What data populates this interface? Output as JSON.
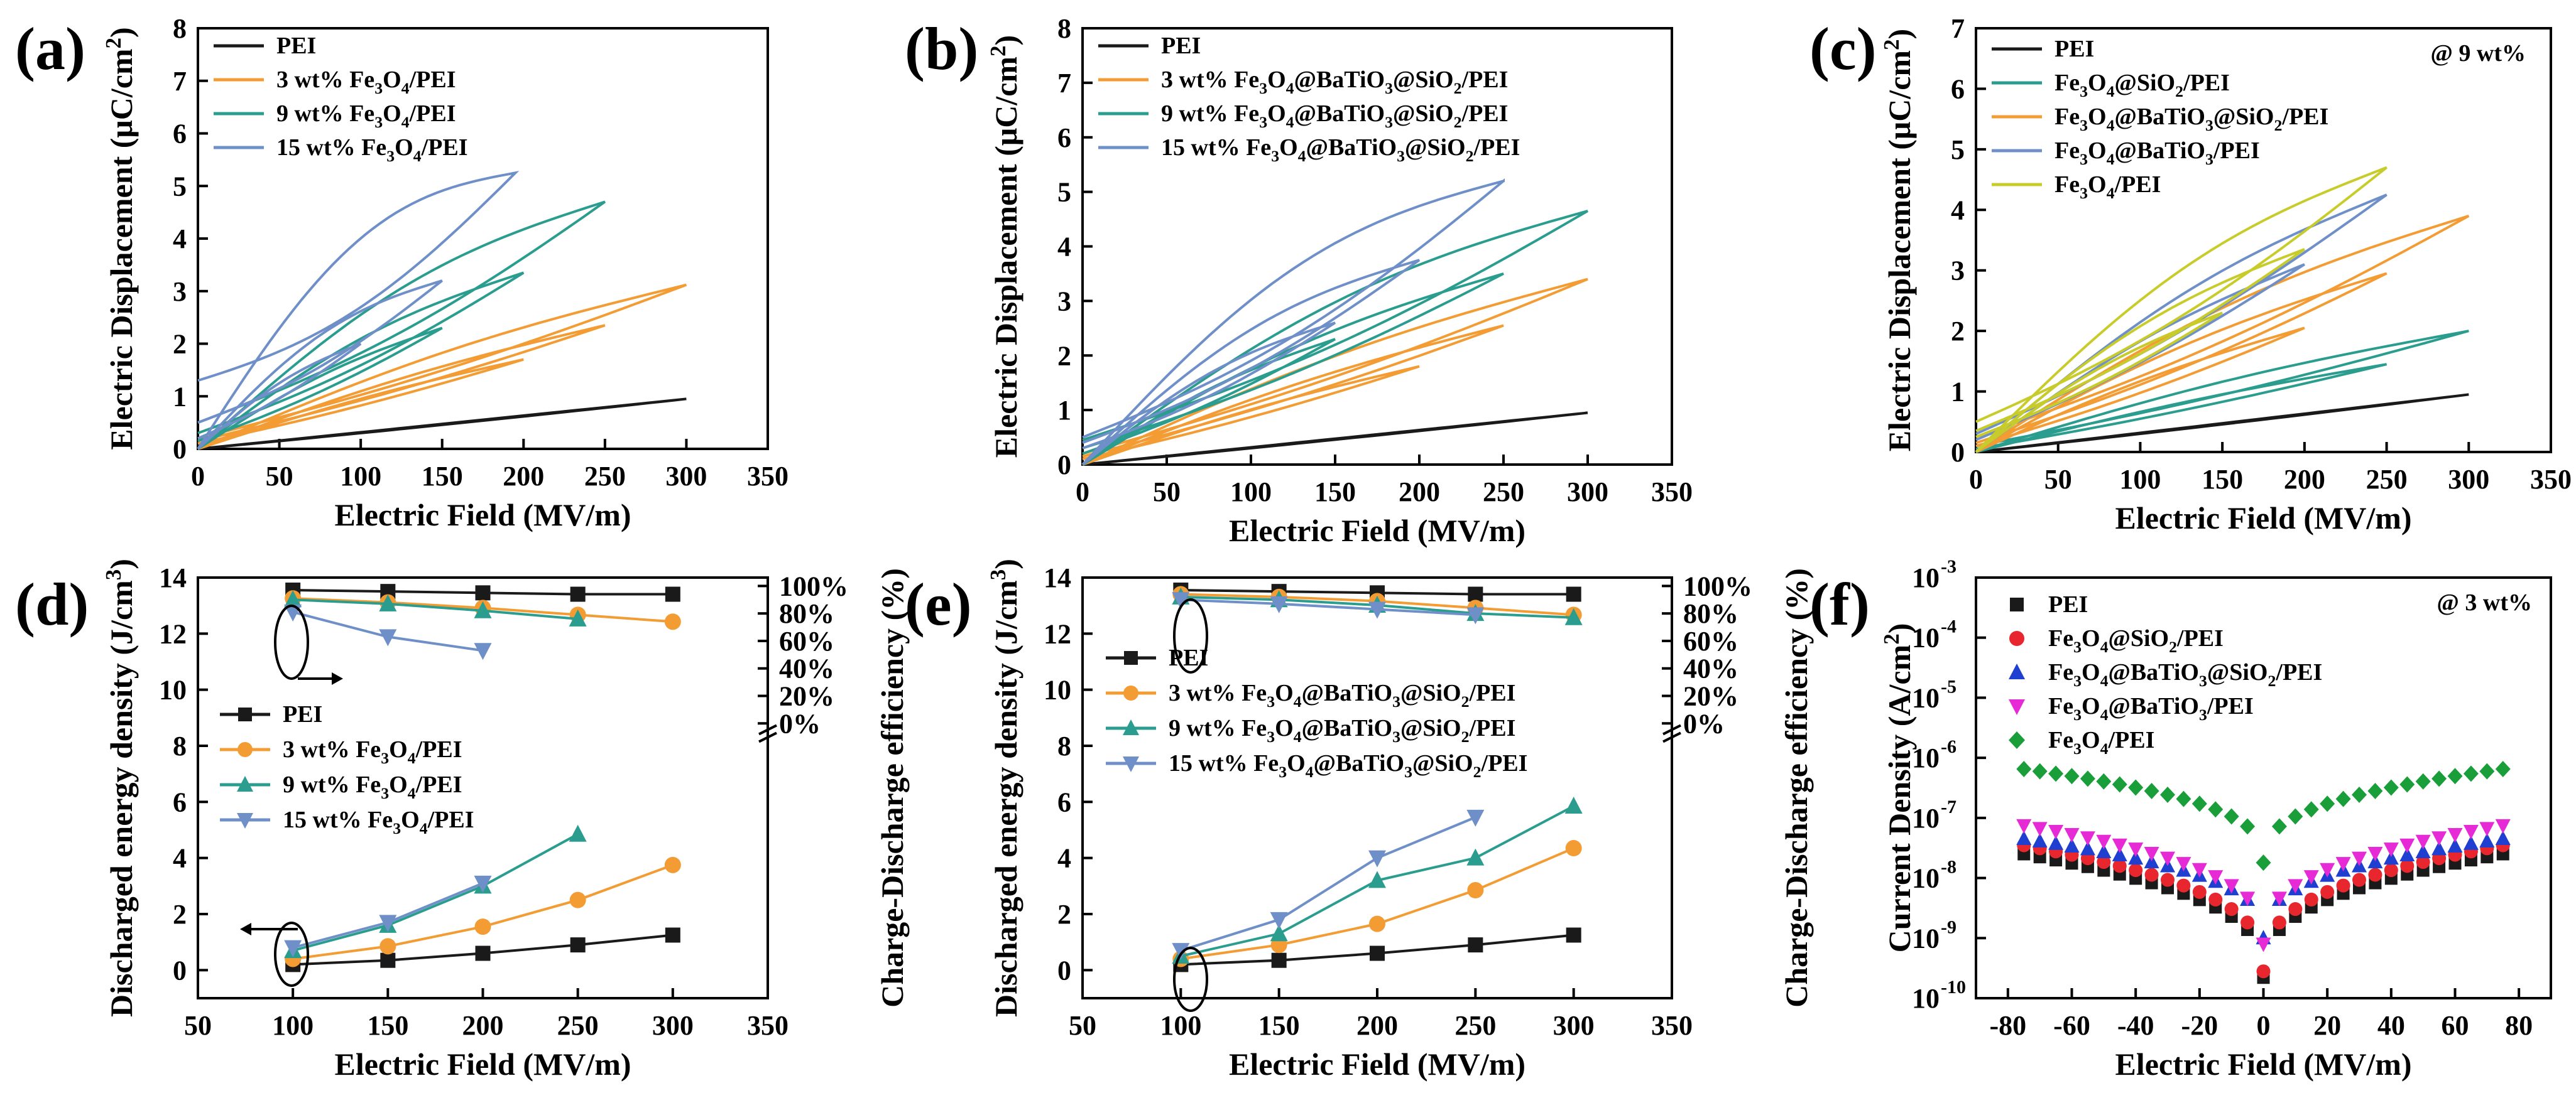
{
  "colors": {
    "PEI": "#1a1a1a",
    "orange": "#f39c34",
    "teal": "#2a9d8f",
    "blue": "#6f8fc9",
    "yellow": "#c8cc2a",
    "red": "#e8262e",
    "navy": "#1f3fd0",
    "magenta": "#e52ad6",
    "green": "#1a9e3a"
  },
  "chart_data": [
    {
      "id": "a",
      "letter": "(a)",
      "type": "line",
      "xlabel": "Electric Field (MV/m)",
      "ylabel": "Electric Displacement (μC/cm²)",
      "xlim": [
        0,
        350
      ],
      "ylim": [
        0,
        8
      ],
      "xticks": [
        "0",
        "50",
        "100",
        "150",
        "200",
        "250",
        "300",
        "350"
      ],
      "yticks": [
        "0",
        "1",
        "2",
        "3",
        "4",
        "5",
        "6",
        "7",
        "8"
      ],
      "legend": [
        "PEI",
        "3 wt% Fe3O4/PEI",
        "9 wt% Fe3O4/PEI",
        "15 wt% Fe3O4/PEI"
      ],
      "series": [
        {
          "name": "PEI",
          "color": "PEI",
          "loops": [
            {
              "emax": 300,
              "dmax": 0.95,
              "dr": 0.0,
              "bulge": 0.0
            }
          ]
        },
        {
          "name": "3 wt% Fe3O4/PEI",
          "color": "orange",
          "loops": [
            {
              "emax": 200,
              "dmax": 1.7,
              "dr": 0.1,
              "bulge": 0.12
            },
            {
              "emax": 250,
              "dmax": 2.35,
              "dr": 0.15,
              "bulge": 0.14
            },
            {
              "emax": 300,
              "dmax": 3.12,
              "dr": 0.2,
              "bulge": 0.17
            }
          ]
        },
        {
          "name": "9 wt% Fe3O4/PEI",
          "color": "teal",
          "loops": [
            {
              "emax": 150,
              "dmax": 2.3,
              "dr": 0.15,
              "bulge": 0.2
            },
            {
              "emax": 200,
              "dmax": 3.35,
              "dr": 0.3,
              "bulge": 0.25
            },
            {
              "emax": 250,
              "dmax": 4.7,
              "dr": 0.5,
              "bulge": 0.3
            }
          ]
        },
        {
          "name": "15 wt% Fe3O4/PEI",
          "color": "blue",
          "loops": [
            {
              "emax": 100,
              "dmax": 2.0,
              "dr": 0.2,
              "bulge": 0.25
            },
            {
              "emax": 150,
              "dmax": 3.2,
              "dr": 0.5,
              "bulge": 0.35
            },
            {
              "emax": 195,
              "dmax": 5.25,
              "dr": 1.3,
              "bulge": 0.5
            }
          ]
        }
      ]
    },
    {
      "id": "b",
      "letter": "(b)",
      "type": "line",
      "xlabel": "Electric Field (MV/m)",
      "ylabel": "Electric Displacement (μC/cm²)",
      "xlim": [
        0,
        350
      ],
      "ylim": [
        0,
        8
      ],
      "xticks": [
        "0",
        "50",
        "100",
        "150",
        "200",
        "250",
        "300",
        "350"
      ],
      "yticks": [
        "0",
        "1",
        "2",
        "3",
        "4",
        "5",
        "6",
        "7",
        "8"
      ],
      "legend": [
        "PEI",
        "3 wt% Fe3O4@BaTiO3@SiO2/PEI",
        "9 wt% Fe3O4@BaTiO3@SiO2/PEI",
        "15 wt% Fe3O4@BaTiO3@SiO2/PEI"
      ],
      "series": [
        {
          "name": "PEI",
          "color": "PEI",
          "loops": [
            {
              "emax": 300,
              "dmax": 0.95,
              "dr": 0.0,
              "bulge": 0.0
            }
          ]
        },
        {
          "name": "3 wt% Fe3O4@BaTiO3@SiO2/PEI",
          "color": "orange",
          "loops": [
            {
              "emax": 200,
              "dmax": 1.8,
              "dr": 0.1,
              "bulge": 0.12
            },
            {
              "emax": 250,
              "dmax": 2.55,
              "dr": 0.15,
              "bulge": 0.14
            },
            {
              "emax": 300,
              "dmax": 3.4,
              "dr": 0.2,
              "bulge": 0.17
            }
          ]
        },
        {
          "name": "9 wt% Fe3O4@BaTiO3@SiO2/PEI",
          "color": "teal",
          "loops": [
            {
              "emax": 150,
              "dmax": 2.3,
              "dr": 0.2,
              "bulge": 0.2
            },
            {
              "emax": 250,
              "dmax": 3.5,
              "dr": 0.3,
              "bulge": 0.22
            },
            {
              "emax": 300,
              "dmax": 4.65,
              "dr": 0.45,
              "bulge": 0.28
            }
          ]
        },
        {
          "name": "15 wt% Fe3O4@BaTiO3@SiO2/PEI",
          "color": "blue",
          "loops": [
            {
              "emax": 150,
              "dmax": 2.6,
              "dr": 0.3,
              "bulge": 0.28
            },
            {
              "emax": 200,
              "dmax": 3.75,
              "dr": 0.4,
              "bulge": 0.32
            },
            {
              "emax": 250,
              "dmax": 5.2,
              "dr": 0.5,
              "bulge": 0.38
            }
          ]
        }
      ]
    },
    {
      "id": "c",
      "letter": "(c)",
      "type": "line",
      "xlabel": "Electric Field (MV/m)",
      "ylabel": "Electric Displacement (μC/cm²)",
      "xlim": [
        0,
        350
      ],
      "ylim": [
        0,
        7
      ],
      "xticks": [
        "0",
        "50",
        "100",
        "150",
        "200",
        "250",
        "300",
        "350"
      ],
      "yticks": [
        "0",
        "1",
        "2",
        "3",
        "4",
        "5",
        "6",
        "7"
      ],
      "annotation": "@ 9 wt%",
      "legend": [
        "PEI",
        "Fe3O4@SiO2/PEI",
        "Fe3O4@BaTiO3@SiO2/PEI",
        "Fe3O4@BaTiO3/PEI",
        "Fe3O4/PEI"
      ],
      "series": [
        {
          "name": "PEI",
          "color": "PEI",
          "loops": [
            {
              "emax": 300,
              "dmax": 0.95,
              "dr": 0.0,
              "bulge": 0.0
            }
          ]
        },
        {
          "name": "Fe3O4@SiO2/PEI",
          "color": "teal",
          "loops": [
            {
              "emax": 250,
              "dmax": 1.45,
              "dr": 0.05,
              "bulge": 0.12
            },
            {
              "emax": 300,
              "dmax": 2.0,
              "dr": 0.1,
              "bulge": 0.16
            }
          ]
        },
        {
          "name": "Fe3O4@BaTiO3@SiO2/PEI",
          "color": "orange",
          "loops": [
            {
              "emax": 200,
              "dmax": 2.05,
              "dr": 0.1,
              "bulge": 0.14
            },
            {
              "emax": 250,
              "dmax": 2.95,
              "dr": 0.15,
              "bulge": 0.18
            },
            {
              "emax": 300,
              "dmax": 3.9,
              "dr": 0.25,
              "bulge": 0.22
            }
          ]
        },
        {
          "name": "Fe3O4@BaTiO3/PEI",
          "color": "blue",
          "loops": [
            {
              "emax": 200,
              "dmax": 3.1,
              "dr": 0.2,
              "bulge": 0.18
            },
            {
              "emax": 250,
              "dmax": 4.25,
              "dr": 0.3,
              "bulge": 0.22
            }
          ]
        },
        {
          "name": "Fe3O4/PEI",
          "color": "yellow",
          "loops": [
            {
              "emax": 150,
              "dmax": 2.3,
              "dr": 0.25,
              "bulge": 0.2
            },
            {
              "emax": 200,
              "dmax": 3.35,
              "dr": 0.35,
              "bulge": 0.24
            },
            {
              "emax": 250,
              "dmax": 4.7,
              "dr": 0.5,
              "bulge": 0.28
            }
          ]
        }
      ]
    },
    {
      "id": "d",
      "letter": "(d)",
      "type": "line",
      "xlabel": "Electric Field (MV/m)",
      "ylabel": "Discharged energy density (J/cm³)",
      "y2label": "Charge-Discharge efficiency (%)",
      "xlim": [
        50,
        350
      ],
      "ylim": [
        -1,
        14
      ],
      "xticks": [
        "50",
        "100",
        "150",
        "200",
        "250",
        "300",
        "350"
      ],
      "yticks": [
        "0",
        "2",
        "4",
        "6",
        "8",
        "10",
        "12",
        "14"
      ],
      "y2ticks": [
        "0%",
        "20%",
        "40%",
        "60%",
        "80%",
        "100%"
      ],
      "legend": [
        "PEI",
        "3 wt% Fe3O4/PEI",
        "9 wt% Fe3O4/PEI",
        "15 wt% Fe3O4/PEI"
      ],
      "series": [
        {
          "name": "PEI",
          "color": "PEI",
          "marker": "square",
          "x": [
            100,
            150,
            200,
            250,
            300
          ],
          "energy": [
            0.2,
            0.35,
            0.6,
            0.9,
            1.25
          ],
          "efficiency": [
            97,
            96,
            95,
            94,
            94
          ]
        },
        {
          "name": "3 wt% Fe3O4/PEI",
          "color": "orange",
          "marker": "circle",
          "x": [
            100,
            150,
            200,
            250,
            300
          ],
          "energy": [
            0.4,
            0.85,
            1.55,
            2.5,
            3.75
          ],
          "efficiency": [
            91,
            88,
            84,
            79,
            74
          ]
        },
        {
          "name": "9 wt% Fe3O4/PEI",
          "color": "teal",
          "marker": "triangle-up",
          "x": [
            100,
            150,
            200,
            250
          ],
          "energy": [
            0.7,
            1.6,
            3.0,
            4.85
          ],
          "efficiency": [
            90,
            87,
            82,
            76
          ]
        },
        {
          "name": "15 wt% Fe3O4/PEI",
          "color": "blue",
          "marker": "triangle-down",
          "x": [
            100,
            150,
            200
          ],
          "energy": [
            0.8,
            1.7,
            3.1
          ],
          "efficiency": [
            81,
            63,
            53
          ]
        }
      ]
    },
    {
      "id": "e",
      "letter": "(e)",
      "type": "line",
      "xlabel": "Electric Field (MV/m)",
      "ylabel": "Discharged energy density (J/cm³)",
      "y2label": "Charge-Discharge efficiency (%)",
      "xlim": [
        50,
        350
      ],
      "ylim": [
        -1,
        14
      ],
      "xticks": [
        "50",
        "100",
        "150",
        "200",
        "250",
        "300",
        "350"
      ],
      "yticks": [
        "0",
        "2",
        "4",
        "6",
        "8",
        "10",
        "12",
        "14"
      ],
      "y2ticks": [
        "0%",
        "20%",
        "40%",
        "60%",
        "80%",
        "100%"
      ],
      "legend": [
        "PEI",
        "3 wt% Fe3O4@BaTiO3@SiO2/PEI",
        "9 wt% Fe3O4@BaTiO3@SiO2/PEI",
        "15 wt% Fe3O4@BaTiO3@SiO2/PEI"
      ],
      "series": [
        {
          "name": "PEI",
          "color": "PEI",
          "marker": "square",
          "x": [
            100,
            150,
            200,
            250,
            300
          ],
          "energy": [
            0.2,
            0.35,
            0.6,
            0.9,
            1.25
          ],
          "efficiency": [
            97,
            96,
            95,
            94,
            94
          ]
        },
        {
          "name": "3 wt% Fe3O4@BaTiO3@SiO2/PEI",
          "color": "orange",
          "marker": "circle",
          "x": [
            100,
            150,
            200,
            250,
            300
          ],
          "energy": [
            0.4,
            0.9,
            1.65,
            2.85,
            4.35
          ],
          "efficiency": [
            94,
            92,
            89,
            84,
            79
          ]
        },
        {
          "name": "9 wt% Fe3O4@BaTiO3@SiO2/PEI",
          "color": "teal",
          "marker": "triangle-up",
          "x": [
            100,
            150,
            200,
            250,
            300
          ],
          "energy": [
            0.5,
            1.3,
            3.2,
            4.0,
            5.85
          ],
          "efficiency": [
            92,
            90,
            86,
            80,
            77
          ]
        },
        {
          "name": "15 wt% Fe3O4@BaTiO3@SiO2/PEI",
          "color": "blue",
          "marker": "triangle-down",
          "x": [
            100,
            150,
            200,
            250
          ],
          "energy": [
            0.7,
            1.8,
            4.0,
            5.45
          ],
          "efficiency": [
            90,
            87,
            83,
            79
          ]
        }
      ]
    },
    {
      "id": "f",
      "letter": "(f)",
      "type": "scatter",
      "xlabel": "Electric Field (MV/m)",
      "ylabel": "Current Density (A/cm²)",
      "xlim": [
        -90,
        90
      ],
      "ylim_log10": [
        -10,
        -3
      ],
      "xticks": [
        "-80",
        "-60",
        "-40",
        "-20",
        "0",
        "20",
        "40",
        "60",
        "80"
      ],
      "yticks": [
        "10",
        "10",
        "10",
        "10",
        "10",
        "10",
        "10",
        "10"
      ],
      "ytick_exponents": [
        "-10",
        "-9",
        "-8",
        "-7",
        "-6",
        "-5",
        "-4",
        "-3"
      ],
      "annotation": "@ 3 wt%",
      "legend": [
        "PEI",
        "Fe3O4@SiO2/PEI",
        "Fe3O4@BaTiO3@SiO2/PEI",
        "Fe3O4@BaTiO3/PEI",
        "Fe3O4/PEI"
      ],
      "series": [
        {
          "name": "PEI",
          "color": "PEI",
          "marker": "square",
          "j_at_75": 2.5e-08,
          "j_at_0": 2.2e-10
        },
        {
          "name": "Fe3O4@SiO2/PEI",
          "color": "red",
          "marker": "circle",
          "j_at_75": 3.5e-08,
          "j_at_0": 2.8e-10
        },
        {
          "name": "Fe3O4@BaTiO3@SiO2/PEI",
          "color": "navy",
          "marker": "triangle-up",
          "j_at_75": 4.5e-08,
          "j_at_0": 1e-09
        },
        {
          "name": "Fe3O4@BaTiO3/PEI",
          "color": "magenta",
          "marker": "triangle-down",
          "j_at_75": 7.5e-08,
          "j_at_0": 8e-10
        },
        {
          "name": "Fe3O4/PEI",
          "color": "green",
          "marker": "diamond",
          "j_at_75": 6.5e-07,
          "j_at_0": 1.8e-08
        }
      ]
    }
  ]
}
